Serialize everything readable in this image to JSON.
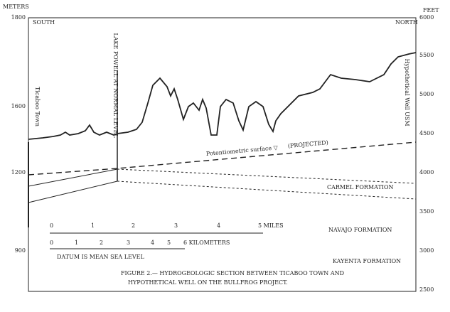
{
  "header": {
    "left_unit": "METERS",
    "right_unit": "FEET",
    "south": "SOUTH",
    "north": "NORTH"
  },
  "left_axis": [
    "1800",
    "1600",
    "1200",
    "900"
  ],
  "right_axis": [
    "6000",
    "5500",
    "5000",
    "4500",
    "4000",
    "3500",
    "3000",
    "2500"
  ],
  "wells": {
    "left": "Ticaboo Town",
    "middle": "LAKE POWELL AT NORMAL LEVEL",
    "right": "Hypothetical Well USM"
  },
  "surface": {
    "label": "Potentiometric surface ▽",
    "projected": "(PROJECTED)"
  },
  "formations": [
    "CARMEL FORMATION",
    "NAVAJO FORMATION",
    "KAYENTA FORMATION"
  ],
  "scale": {
    "miles": [
      "0",
      "1",
      "2",
      "3",
      "4",
      "5 MILES"
    ],
    "kilometers": [
      "0",
      "1",
      "2",
      "3",
      "4",
      "5",
      "6 KILOMETERS"
    ],
    "datum": "DATUM IS MEAN SEA LEVEL"
  },
  "caption": [
    "FIGURE 2.— HYDROGEOLOGIC SECTION BETWEEN TICABOO TOWN AND",
    "HYPOTHETICAL WELL ON THE BULLFROG PROJECT."
  ]
}
